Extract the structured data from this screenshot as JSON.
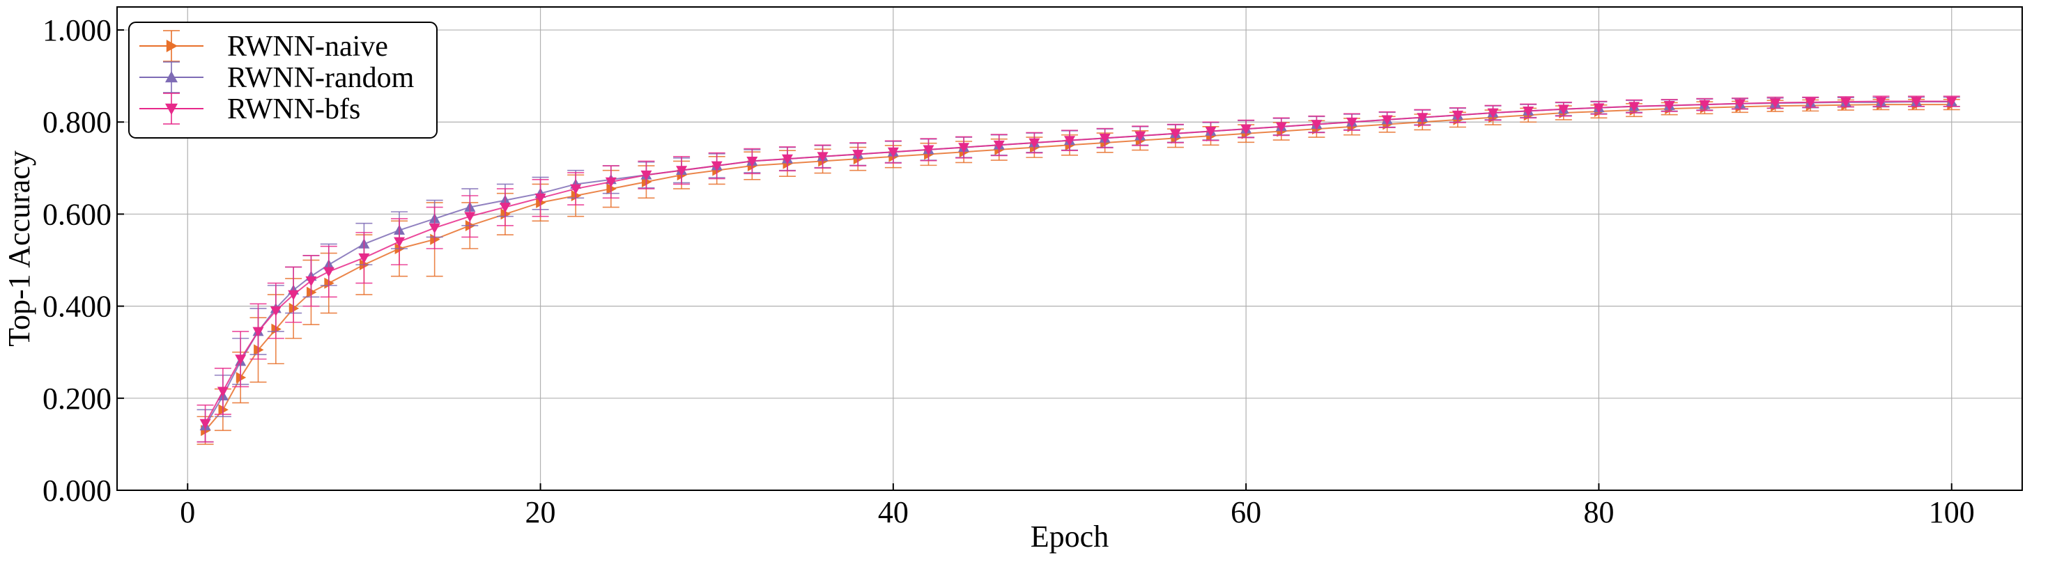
{
  "chart_data": {
    "type": "line",
    "xlabel": "Epoch",
    "ylabel": "Top-1 Accuracy",
    "xlim": [
      -4,
      104
    ],
    "ylim": [
      0.0,
      1.05
    ],
    "xticks": [
      0,
      20,
      40,
      60,
      80,
      100
    ],
    "xtick_labels": [
      "0",
      "20",
      "40",
      "60",
      "80",
      "100"
    ],
    "yticks": [
      0.0,
      0.2,
      0.4,
      0.6,
      0.8,
      1.0
    ],
    "ytick_labels": [
      "0.000",
      "0.200",
      "0.400",
      "0.600",
      "0.800",
      "1.000"
    ],
    "grid": true,
    "legend": {
      "placement": "top-left"
    },
    "series": [
      {
        "name": "RWNN-naive",
        "color": "#e8702a",
        "marker": "triangle-right",
        "points": [
          [
            1,
            0.13,
            0.03
          ],
          [
            2,
            0.175,
            0.045
          ],
          [
            3,
            0.245,
            0.055
          ],
          [
            4,
            0.305,
            0.07
          ],
          [
            5,
            0.35,
            0.075
          ],
          [
            6,
            0.395,
            0.065
          ],
          [
            7,
            0.43,
            0.07
          ],
          [
            8,
            0.45,
            0.065
          ],
          [
            10,
            0.49,
            0.065
          ],
          [
            12,
            0.525,
            0.06
          ],
          [
            14,
            0.545,
            0.08
          ],
          [
            16,
            0.575,
            0.05
          ],
          [
            18,
            0.6,
            0.045
          ],
          [
            20,
            0.625,
            0.04
          ],
          [
            22,
            0.64,
            0.045
          ],
          [
            24,
            0.655,
            0.04
          ],
          [
            26,
            0.67,
            0.035
          ],
          [
            28,
            0.685,
            0.03
          ],
          [
            30,
            0.695,
            0.03
          ],
          [
            32,
            0.705,
            0.03
          ],
          [
            34,
            0.71,
            0.028
          ],
          [
            36,
            0.715,
            0.026
          ],
          [
            38,
            0.72,
            0.025
          ],
          [
            40,
            0.725,
            0.024
          ],
          [
            42,
            0.73,
            0.024
          ],
          [
            44,
            0.735,
            0.023
          ],
          [
            46,
            0.74,
            0.023
          ],
          [
            48,
            0.745,
            0.022
          ],
          [
            50,
            0.75,
            0.022
          ],
          [
            52,
            0.755,
            0.021
          ],
          [
            54,
            0.76,
            0.021
          ],
          [
            56,
            0.765,
            0.02
          ],
          [
            58,
            0.77,
            0.02
          ],
          [
            60,
            0.775,
            0.019
          ],
          [
            62,
            0.78,
            0.019
          ],
          [
            64,
            0.785,
            0.018
          ],
          [
            66,
            0.79,
            0.018
          ],
          [
            68,
            0.795,
            0.017
          ],
          [
            70,
            0.8,
            0.017
          ],
          [
            72,
            0.805,
            0.016
          ],
          [
            74,
            0.81,
            0.016
          ],
          [
            76,
            0.815,
            0.015
          ],
          [
            78,
            0.82,
            0.015
          ],
          [
            80,
            0.823,
            0.014
          ],
          [
            82,
            0.826,
            0.014
          ],
          [
            84,
            0.829,
            0.013
          ],
          [
            86,
            0.831,
            0.013
          ],
          [
            88,
            0.833,
            0.012
          ],
          [
            90,
            0.835,
            0.012
          ],
          [
            92,
            0.836,
            0.012
          ],
          [
            94,
            0.837,
            0.011
          ],
          [
            96,
            0.838,
            0.011
          ],
          [
            98,
            0.838,
            0.011
          ],
          [
            100,
            0.838,
            0.011
          ]
        ]
      },
      {
        "name": "RWNN-random",
        "color": "#7e6bb5",
        "marker": "triangle-up",
        "points": [
          [
            1,
            0.14,
            0.035
          ],
          [
            2,
            0.205,
            0.045
          ],
          [
            3,
            0.28,
            0.05
          ],
          [
            4,
            0.345,
            0.05
          ],
          [
            5,
            0.395,
            0.05
          ],
          [
            6,
            0.435,
            0.05
          ],
          [
            7,
            0.465,
            0.045
          ],
          [
            8,
            0.49,
            0.045
          ],
          [
            10,
            0.535,
            0.045
          ],
          [
            12,
            0.565,
            0.04
          ],
          [
            14,
            0.59,
            0.04
          ],
          [
            16,
            0.615,
            0.04
          ],
          [
            18,
            0.63,
            0.035
          ],
          [
            20,
            0.645,
            0.035
          ],
          [
            22,
            0.665,
            0.03
          ],
          [
            24,
            0.675,
            0.03
          ],
          [
            26,
            0.685,
            0.028
          ],
          [
            28,
            0.695,
            0.027
          ],
          [
            30,
            0.705,
            0.026
          ],
          [
            32,
            0.715,
            0.025
          ],
          [
            34,
            0.72,
            0.025
          ],
          [
            36,
            0.725,
            0.024
          ],
          [
            38,
            0.73,
            0.024
          ],
          [
            40,
            0.735,
            0.023
          ],
          [
            42,
            0.74,
            0.023
          ],
          [
            44,
            0.745,
            0.022
          ],
          [
            46,
            0.75,
            0.022
          ],
          [
            48,
            0.755,
            0.021
          ],
          [
            50,
            0.76,
            0.021
          ],
          [
            52,
            0.765,
            0.02
          ],
          [
            54,
            0.77,
            0.02
          ],
          [
            56,
            0.775,
            0.019
          ],
          [
            58,
            0.78,
            0.019
          ],
          [
            60,
            0.785,
            0.018
          ],
          [
            62,
            0.79,
            0.018
          ],
          [
            64,
            0.795,
            0.017
          ],
          [
            66,
            0.8,
            0.017
          ],
          [
            68,
            0.805,
            0.016
          ],
          [
            70,
            0.81,
            0.016
          ],
          [
            72,
            0.815,
            0.015
          ],
          [
            74,
            0.82,
            0.015
          ],
          [
            76,
            0.824,
            0.014
          ],
          [
            78,
            0.828,
            0.014
          ],
          [
            80,
            0.831,
            0.013
          ],
          [
            82,
            0.834,
            0.013
          ],
          [
            84,
            0.836,
            0.012
          ],
          [
            86,
            0.838,
            0.012
          ],
          [
            88,
            0.84,
            0.011
          ],
          [
            90,
            0.841,
            0.011
          ],
          [
            92,
            0.842,
            0.011
          ],
          [
            94,
            0.843,
            0.01
          ],
          [
            96,
            0.843,
            0.01
          ],
          [
            98,
            0.844,
            0.01
          ],
          [
            100,
            0.844,
            0.01
          ]
        ]
      },
      {
        "name": "RWNN-bfs",
        "color": "#e7298a",
        "marker": "triangle-down",
        "points": [
          [
            1,
            0.145,
            0.04
          ],
          [
            2,
            0.215,
            0.05
          ],
          [
            3,
            0.285,
            0.06
          ],
          [
            4,
            0.345,
            0.06
          ],
          [
            5,
            0.39,
            0.06
          ],
          [
            6,
            0.425,
            0.06
          ],
          [
            7,
            0.455,
            0.055
          ],
          [
            8,
            0.475,
            0.055
          ],
          [
            10,
            0.505,
            0.055
          ],
          [
            12,
            0.54,
            0.05
          ],
          [
            14,
            0.57,
            0.045
          ],
          [
            16,
            0.595,
            0.045
          ],
          [
            18,
            0.615,
            0.04
          ],
          [
            20,
            0.635,
            0.04
          ],
          [
            22,
            0.655,
            0.035
          ],
          [
            24,
            0.67,
            0.035
          ],
          [
            26,
            0.685,
            0.03
          ],
          [
            28,
            0.695,
            0.03
          ],
          [
            30,
            0.705,
            0.028
          ],
          [
            32,
            0.715,
            0.027
          ],
          [
            34,
            0.72,
            0.026
          ],
          [
            36,
            0.725,
            0.025
          ],
          [
            38,
            0.73,
            0.025
          ],
          [
            40,
            0.735,
            0.024
          ],
          [
            42,
            0.74,
            0.024
          ],
          [
            44,
            0.745,
            0.023
          ],
          [
            46,
            0.75,
            0.023
          ],
          [
            48,
            0.755,
            0.022
          ],
          [
            50,
            0.76,
            0.022
          ],
          [
            52,
            0.765,
            0.021
          ],
          [
            54,
            0.77,
            0.021
          ],
          [
            56,
            0.775,
            0.02
          ],
          [
            58,
            0.78,
            0.02
          ],
          [
            60,
            0.785,
            0.019
          ],
          [
            62,
            0.79,
            0.019
          ],
          [
            64,
            0.795,
            0.018
          ],
          [
            66,
            0.8,
            0.018
          ],
          [
            68,
            0.805,
            0.017
          ],
          [
            70,
            0.81,
            0.017
          ],
          [
            72,
            0.815,
            0.016
          ],
          [
            74,
            0.82,
            0.016
          ],
          [
            76,
            0.824,
            0.015
          ],
          [
            78,
            0.828,
            0.015
          ],
          [
            80,
            0.831,
            0.014
          ],
          [
            82,
            0.834,
            0.014
          ],
          [
            84,
            0.836,
            0.013
          ],
          [
            86,
            0.838,
            0.013
          ],
          [
            88,
            0.84,
            0.012
          ],
          [
            90,
            0.842,
            0.012
          ],
          [
            92,
            0.843,
            0.011
          ],
          [
            94,
            0.844,
            0.011
          ],
          [
            96,
            0.845,
            0.011
          ],
          [
            98,
            0.845,
            0.011
          ],
          [
            100,
            0.845,
            0.011
          ]
        ]
      }
    ]
  }
}
